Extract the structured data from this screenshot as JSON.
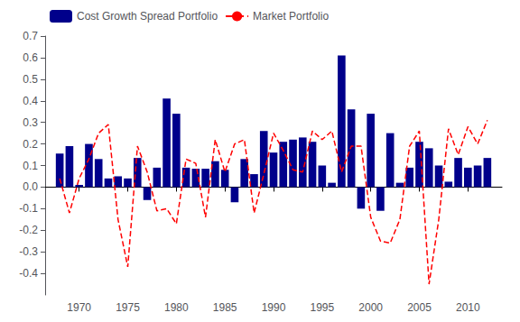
{
  "chart_data": {
    "type": "bar",
    "x": [
      1968,
      1969,
      1970,
      1971,
      1972,
      1973,
      1974,
      1975,
      1976,
      1977,
      1978,
      1979,
      1980,
      1981,
      1982,
      1983,
      1984,
      1985,
      1986,
      1987,
      1988,
      1989,
      1990,
      1991,
      1992,
      1993,
      1994,
      1995,
      1996,
      1997,
      1998,
      1999,
      2000,
      2001,
      2002,
      2003,
      2004,
      2005,
      2006,
      2007,
      2008,
      2009,
      2010,
      2011,
      2012
    ],
    "series": [
      {
        "name": "Cost Growth Spread Portfolio",
        "type": "bar",
        "color": "#00008B",
        "values": [
          0.155,
          0.19,
          0.01,
          0.2,
          0.13,
          0.04,
          0.05,
          0.04,
          0.135,
          -0.06,
          0.09,
          0.41,
          0.34,
          0.09,
          0.085,
          0.085,
          0.12,
          0.08,
          -0.07,
          0.13,
          0.06,
          0.26,
          0.16,
          0.21,
          0.22,
          0.23,
          0.21,
          0.1,
          0.02,
          0.61,
          0.36,
          -0.1,
          0.34,
          -0.11,
          0.25,
          0.02,
          0.09,
          0.21,
          0.18,
          0.1,
          0.025,
          0.135,
          0.09,
          0.1,
          0.135
        ]
      },
      {
        "name": "Market Portfolio",
        "type": "line",
        "color": "#FF0000",
        "line_style": "dashed",
        "values": [
          0.04,
          -0.12,
          0.04,
          0.13,
          0.25,
          0.29,
          -0.15,
          -0.37,
          0.19,
          0.07,
          -0.11,
          -0.1,
          -0.17,
          0.13,
          0.11,
          -0.14,
          0.22,
          0.07,
          0.2,
          0.22,
          -0.12,
          0.06,
          0.25,
          0.17,
          0.08,
          0.07,
          0.26,
          0.22,
          0.26,
          0.07,
          0.19,
          0.19,
          -0.14,
          -0.25,
          -0.26,
          -0.15,
          0.19,
          0.26,
          -0.45,
          -0.15,
          0.27,
          0.15,
          0.28,
          0.2,
          0.31
        ]
      }
    ],
    "xlim": [
      1966.5,
      2013.5
    ],
    "xticks": [
      1970,
      1975,
      1980,
      1985,
      1990,
      1995,
      2000,
      2005,
      2010
    ],
    "ylim": [
      -0.5,
      0.7
    ],
    "yticks": [
      -0.4,
      -0.3,
      -0.2,
      -0.1,
      {
        "value": 0,
        "label": "0.0"
      },
      0.1,
      0.2,
      0.3,
      0.4,
      0.5,
      0.6,
      0.7
    ],
    "grid": false,
    "legend": "upper left"
  }
}
